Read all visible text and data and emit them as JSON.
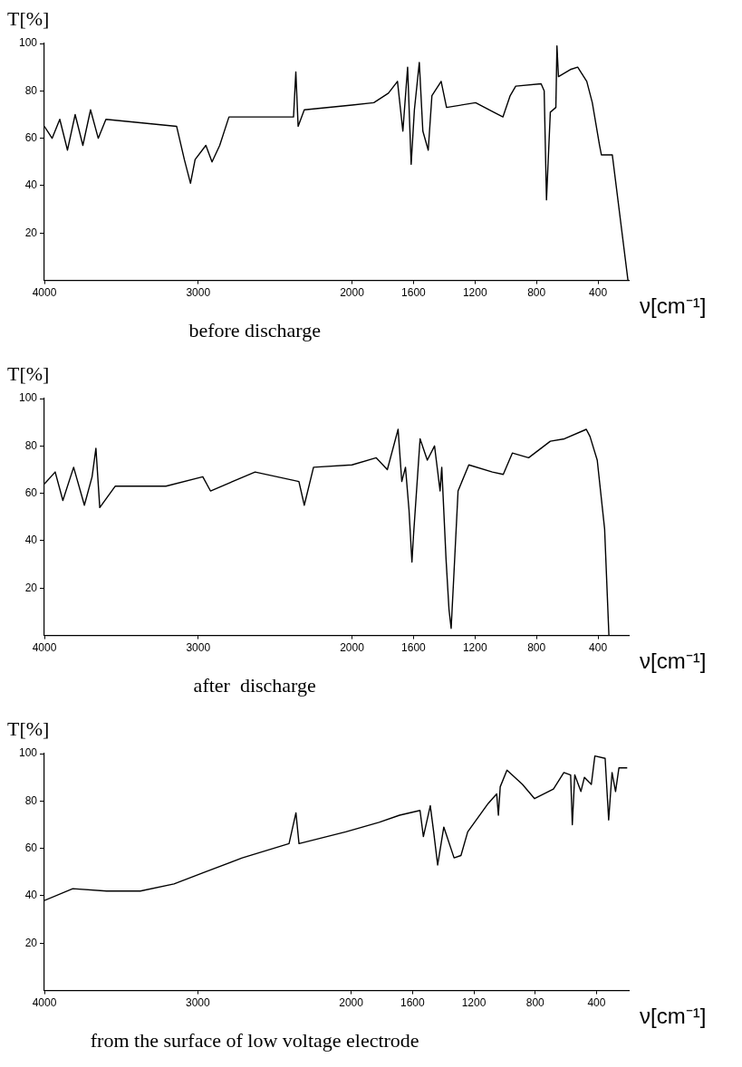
{
  "chart_data": [
    {
      "type": "line",
      "title": "before discharge",
      "xlabel": "ν[cm⁻¹]",
      "ylabel": "T[%]",
      "xlim": [
        4000,
        200
      ],
      "xticks": [
        4000,
        3000,
        2000,
        1600,
        1200,
        800,
        400
      ],
      "ylim": [
        0,
        100
      ],
      "yticks": [
        20,
        40,
        60,
        80,
        100
      ],
      "x": [
        4000,
        3950,
        3900,
        3850,
        3800,
        3750,
        3700,
        3650,
        3600,
        3140,
        3090,
        3050,
        3020,
        2950,
        2910,
        2860,
        2800,
        2380,
        2365,
        2350,
        2310,
        2000,
        1858,
        1763,
        1704,
        1669,
        1638,
        1615,
        1594,
        1562,
        1539,
        1504,
        1480,
        1420,
        1385,
        1196,
        1078,
        1018,
        971,
        935,
        770,
        750,
        735,
        710,
        674,
        667,
        657,
        580,
        532,
        473,
        437,
        390,
        378,
        307,
        205
      ],
      "series": [
        {
          "color": "#000000",
          "values": [
            65,
            60,
            68,
            55,
            70,
            57,
            72,
            60,
            68,
            65,
            51,
            41,
            51,
            57,
            50,
            57,
            69,
            69,
            88,
            65,
            72,
            74,
            75,
            79,
            84,
            63,
            90,
            49,
            72,
            92,
            63,
            55,
            78,
            84,
            73,
            75,
            71,
            69,
            78,
            82,
            83,
            80,
            34,
            71,
            73,
            99,
            86,
            89,
            90,
            84,
            75,
            57,
            53,
            53,
            0
          ]
        }
      ]
    },
    {
      "type": "line",
      "title": "after  discharge",
      "xlabel": "ν[cm⁻¹]",
      "ylabel": "T[%]",
      "xlim": [
        4000,
        200
      ],
      "xticks": [
        4000,
        3000,
        2000,
        1600,
        1200,
        800,
        400
      ],
      "ylim": [
        0,
        100
      ],
      "yticks": [
        20,
        40,
        60,
        80,
        100
      ],
      "x": [
        4000,
        3930,
        3880,
        3810,
        3740,
        3690,
        3665,
        3640,
        3540,
        3210,
        2970,
        2920,
        2630,
        2345,
        2310,
        2250,
        2000,
        1842,
        1770,
        1700,
        1676,
        1652,
        1629,
        1610,
        1600,
        1557,
        1510,
        1463,
        1427,
        1416,
        1388,
        1369,
        1355,
        1340,
        1310,
        1240,
        1087,
        1016,
        957,
        851,
        710,
        618,
        476,
        452,
        405,
        357,
        329,
        204
      ],
      "series": [
        {
          "color": "#000000",
          "values": [
            64,
            69,
            57,
            71,
            55,
            67,
            79,
            54,
            63,
            63,
            67,
            61,
            69,
            65,
            55,
            71,
            72,
            75,
            70,
            87,
            65,
            71,
            53,
            31,
            42,
            83,
            74,
            80,
            61,
            71,
            32,
            11,
            3,
            22,
            61,
            72,
            69,
            68,
            77,
            75,
            82,
            83,
            87,
            84,
            74,
            45,
            0,
            0
          ]
        }
      ]
    },
    {
      "type": "line",
      "title": "from the surface of low voltage electrode",
      "xlabel": "ν[cm⁻¹]",
      "ylabel": "T[%]",
      "xlim": [
        4000,
        190
      ],
      "xticks": [
        4000,
        3000,
        2000,
        1600,
        1200,
        800,
        400
      ],
      "ylim": [
        0,
        100
      ],
      "yticks": [
        20,
        40,
        60,
        80,
        100
      ],
      "x": [
        4000,
        3815,
        3595,
        3375,
        3155,
        2955,
        2710,
        2405,
        2360,
        2340,
        2035,
        1818,
        1684,
        1551,
        1529,
        1484,
        1462,
        1436,
        1396,
        1329,
        1284,
        1240,
        1106,
        1051,
        1040,
        1028,
        984,
        883,
        804,
        681,
        613,
        569,
        558,
        542,
        502,
        479,
        434,
        411,
        344,
        321,
        299,
        276,
        254,
        200
      ],
      "series": [
        {
          "color": "#000000",
          "values": [
            38,
            43,
            42,
            42,
            45,
            50,
            56,
            62,
            75,
            62,
            67,
            71,
            74,
            76,
            65,
            78,
            67,
            53,
            69,
            56,
            57,
            67,
            79,
            83,
            74,
            86,
            93,
            87,
            81,
            85,
            92,
            91,
            70,
            91,
            84,
            90,
            87,
            99,
            98,
            72,
            92,
            84,
            94,
            94
          ]
        }
      ]
    }
  ]
}
